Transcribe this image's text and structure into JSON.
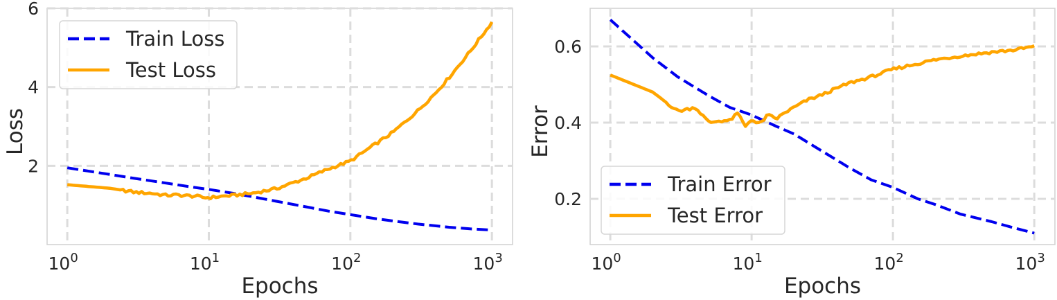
{
  "chart_data": [
    {
      "type": "line",
      "xlabel": "Epochs",
      "ylabel": "Loss",
      "xscale": "log",
      "xlim": [
        0.72,
        1400
      ],
      "ylim": [
        0,
        6
      ],
      "xticks": [
        {
          "value": 1,
          "base": "10",
          "exp": "0"
        },
        {
          "value": 10,
          "base": "10",
          "exp": "1"
        },
        {
          "value": 100,
          "base": "10",
          "exp": "2"
        },
        {
          "value": 1000,
          "base": "10",
          "exp": "3"
        }
      ],
      "yticks": [
        {
          "value": 2,
          "label": "2"
        },
        {
          "value": 4,
          "label": "4"
        },
        {
          "value": 6,
          "label": "6"
        }
      ],
      "grid": true,
      "legend": "top-left",
      "series": [
        {
          "name": "Train Loss",
          "color": "#0000ee",
          "style": "dashed",
          "x": [
            1,
            2,
            3,
            5,
            7,
            10,
            15,
            20,
            30,
            50,
            70,
            100,
            150,
            200,
            300,
            500,
            700,
            1000
          ],
          "y": [
            1.95,
            1.78,
            1.68,
            1.56,
            1.48,
            1.4,
            1.3,
            1.22,
            1.1,
            0.95,
            0.85,
            0.76,
            0.66,
            0.6,
            0.52,
            0.44,
            0.4,
            0.37
          ]
        },
        {
          "name": "Test Loss",
          "color": "#ffa500",
          "style": "solid",
          "x": [
            1,
            2,
            3,
            4,
            5,
            6,
            7,
            8,
            9,
            10,
            12,
            15,
            20,
            30,
            50,
            70,
            100,
            150,
            200,
            300,
            400,
            500,
            600,
            700,
            800,
            900,
            1000
          ],
          "y": [
            1.52,
            1.43,
            1.33,
            1.3,
            1.25,
            1.26,
            1.24,
            1.23,
            1.2,
            1.19,
            1.22,
            1.25,
            1.3,
            1.42,
            1.7,
            1.92,
            2.12,
            2.55,
            2.85,
            3.4,
            3.85,
            4.25,
            4.6,
            4.9,
            5.18,
            5.42,
            5.65
          ]
        }
      ]
    },
    {
      "type": "line",
      "xlabel": "Epochs",
      "ylabel": "Error",
      "xscale": "log",
      "xlim": [
        0.72,
        1400
      ],
      "ylim": [
        0.08,
        0.7
      ],
      "xticks": [
        {
          "value": 1,
          "base": "10",
          "exp": "0"
        },
        {
          "value": 10,
          "base": "10",
          "exp": "1"
        },
        {
          "value": 100,
          "base": "10",
          "exp": "2"
        },
        {
          "value": 1000,
          "base": "10",
          "exp": "3"
        }
      ],
      "yticks": [
        {
          "value": 0.2,
          "label": "0.2"
        },
        {
          "value": 0.4,
          "label": "0.4"
        },
        {
          "value": 0.6,
          "label": "0.6"
        }
      ],
      "grid": true,
      "legend": "bottom-left",
      "series": [
        {
          "name": "Train Error",
          "color": "#0000ee",
          "style": "dashed",
          "x": [
            1,
            2,
            3,
            5,
            7,
            10,
            15,
            20,
            30,
            50,
            70,
            100,
            150,
            200,
            300,
            500,
            700,
            1000
          ],
          "y": [
            0.67,
            0.57,
            0.52,
            0.47,
            0.44,
            0.42,
            0.39,
            0.37,
            0.33,
            0.28,
            0.25,
            0.23,
            0.2,
            0.185,
            0.16,
            0.14,
            0.125,
            0.11
          ]
        },
        {
          "name": "Test Error",
          "color": "#ffa500",
          "style": "solid",
          "x": [
            1,
            2,
            3,
            4,
            5,
            6,
            7,
            8,
            9,
            10,
            11,
            12,
            13,
            15,
            17,
            20,
            25,
            30,
            40,
            50,
            70,
            100,
            150,
            200,
            300,
            500,
            700,
            1000
          ],
          "y": [
            0.525,
            0.48,
            0.43,
            0.44,
            0.4,
            0.405,
            0.405,
            0.425,
            0.39,
            0.41,
            0.395,
            0.405,
            0.42,
            0.41,
            0.425,
            0.44,
            0.46,
            0.47,
            0.49,
            0.505,
            0.52,
            0.54,
            0.555,
            0.565,
            0.575,
            0.585,
            0.59,
            0.6
          ]
        }
      ]
    }
  ]
}
